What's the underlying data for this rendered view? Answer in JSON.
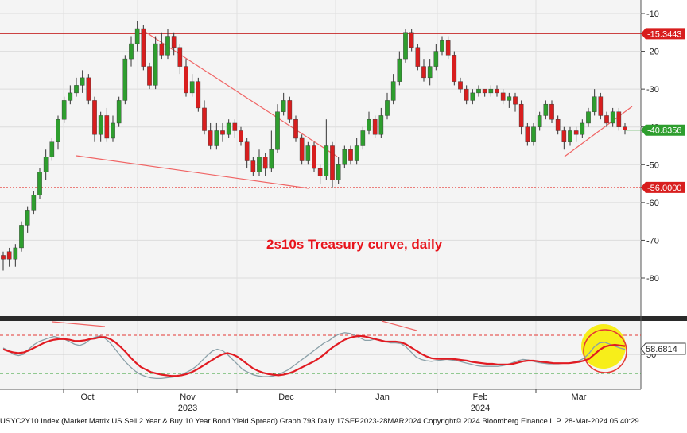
{
  "chart_data": [
    {
      "type": "candlestick",
      "annotation": "2s10s Treasury curve, daily",
      "y_ticks": [
        -10,
        -20,
        -30,
        -40,
        -50,
        -60,
        -70,
        -80
      ],
      "ylim": [
        -88,
        -7
      ],
      "x_month_labels": [
        "Oct",
        "Nov",
        "Dec",
        "Jan",
        "Feb",
        "Mar"
      ],
      "x_year_labels": [
        "2023",
        "2024"
      ],
      "x_range": [
        "2023-09-17",
        "2024-03-28"
      ],
      "price_tags": [
        {
          "value": -15.3443,
          "label": "-15.3443",
          "color": "#d81e1e"
        },
        {
          "value": -40.8356,
          "label": "-40.8356",
          "color": "#2e9e2e"
        },
        {
          "value": -56.0,
          "label": "-56.0000",
          "color": "#d81e1e"
        }
      ],
      "horizontal_lines": [
        {
          "value": -15.3443,
          "style": "solid",
          "color": "#c62828"
        },
        {
          "value": -56.0,
          "style": "dotted",
          "color": "#e53935"
        }
      ],
      "up_color": "#2e9e2e",
      "down_color": "#d81e1e",
      "ohlc": [
        [
          -74,
          -75,
          -78,
          -73
        ],
        [
          -73,
          -75,
          -77,
          -72
        ],
        [
          -75,
          -72,
          -77,
          -71
        ],
        [
          -72,
          -66,
          -73,
          -65
        ],
        [
          -66,
          -62,
          -68,
          -61
        ],
        [
          -62,
          -58,
          -63,
          -57
        ],
        [
          -58,
          -52,
          -59,
          -51
        ],
        [
          -52,
          -48,
          -54,
          -46
        ],
        [
          -48,
          -44,
          -49,
          -43
        ],
        [
          -44,
          -38,
          -46,
          -37
        ],
        [
          -38,
          -33,
          -39,
          -32
        ],
        [
          -33,
          -31,
          -34,
          -29
        ],
        [
          -31,
          -29,
          -32,
          -27
        ],
        [
          -29,
          -27,
          -31,
          -25
        ],
        [
          -27,
          -33,
          -34,
          -26
        ],
        [
          -33,
          -42,
          -44,
          -32
        ],
        [
          -42,
          -37,
          -44,
          -36
        ],
        [
          -37,
          -43,
          -44,
          -35
        ],
        [
          -43,
          -39,
          -44,
          -37
        ],
        [
          -39,
          -33,
          -40,
          -32
        ],
        [
          -33,
          -22,
          -34,
          -21
        ],
        [
          -22,
          -18,
          -24,
          -16
        ],
        [
          -18,
          -14,
          -20,
          -12
        ],
        [
          -14,
          -24,
          -25,
          -13
        ],
        [
          -24,
          -29,
          -30,
          -23
        ],
        [
          -29,
          -18,
          -30,
          -16
        ],
        [
          -18,
          -21,
          -22,
          -15
        ],
        [
          -21,
          -16,
          -22,
          -14
        ],
        [
          -16,
          -19,
          -21,
          -15
        ],
        [
          -19,
          -24,
          -26,
          -18
        ],
        [
          -24,
          -31,
          -32,
          -22
        ],
        [
          -31,
          -28,
          -32,
          -26
        ],
        [
          -28,
          -35,
          -36,
          -27
        ],
        [
          -35,
          -41,
          -42,
          -33
        ],
        [
          -41,
          -45,
          -46,
          -39
        ],
        [
          -45,
          -41,
          -46,
          -39
        ],
        [
          -41,
          -42,
          -44,
          -39
        ],
        [
          -42,
          -39,
          -43,
          -38
        ],
        [
          -39,
          -41,
          -43,
          -38
        ],
        [
          -41,
          -44,
          -45,
          -40
        ],
        [
          -44,
          -49,
          -51,
          -43
        ],
        [
          -49,
          -52,
          -53,
          -48
        ],
        [
          -52,
          -48,
          -53,
          -46
        ],
        [
          -48,
          -51,
          -53,
          -47
        ],
        [
          -51,
          -46,
          -52,
          -41
        ],
        [
          -46,
          -36,
          -47,
          -34
        ],
        [
          -36,
          -33,
          -37,
          -31
        ],
        [
          -33,
          -38,
          -39,
          -32
        ],
        [
          -38,
          -43,
          -44,
          -37
        ],
        [
          -43,
          -49,
          -50,
          -42
        ],
        [
          -49,
          -45,
          -50,
          -44
        ],
        [
          -45,
          -51,
          -52,
          -44
        ],
        [
          -51,
          -53,
          -55,
          -50
        ],
        [
          -53,
          -45,
          -54,
          -38
        ],
        [
          -45,
          -54,
          -56,
          -44
        ],
        [
          -54,
          -50,
          -55,
          -48
        ],
        [
          -50,
          -46,
          -51,
          -45
        ],
        [
          -46,
          -49,
          -50,
          -45
        ],
        [
          -49,
          -45,
          -50,
          -43
        ],
        [
          -45,
          -41,
          -46,
          -40
        ],
        [
          -41,
          -38,
          -42,
          -36
        ],
        [
          -38,
          -42,
          -43,
          -37
        ],
        [
          -42,
          -37,
          -43,
          -35
        ],
        [
          -37,
          -33,
          -38,
          -31
        ],
        [
          -33,
          -28,
          -34,
          -26
        ],
        [
          -28,
          -22,
          -29,
          -20
        ],
        [
          -22,
          -15,
          -23,
          -14
        ],
        [
          -15,
          -19,
          -20,
          -14
        ],
        [
          -19,
          -24,
          -25,
          -18
        ],
        [
          -24,
          -27,
          -28,
          -22
        ],
        [
          -27,
          -24,
          -29,
          -22
        ],
        [
          -24,
          -20,
          -25,
          -18
        ],
        [
          -20,
          -17,
          -21,
          -16
        ],
        [
          -17,
          -21,
          -22,
          -16
        ],
        [
          -21,
          -28,
          -29,
          -20
        ],
        [
          -28,
          -30,
          -31,
          -27
        ],
        [
          -30,
          -33,
          -34,
          -29
        ],
        [
          -33,
          -31,
          -34,
          -30
        ],
        [
          -31,
          -30,
          -32,
          -29
        ],
        [
          -30,
          -31,
          -32,
          -30
        ],
        [
          -31,
          -30,
          -32,
          -29
        ],
        [
          -30,
          -31,
          -32,
          -29
        ],
        [
          -31,
          -33,
          -34,
          -30
        ],
        [
          -33,
          -32,
          -35,
          -31
        ],
        [
          -32,
          -34,
          -36,
          -31
        ],
        [
          -34,
          -40,
          -42,
          -33
        ],
        [
          -40,
          -44,
          -45,
          -39
        ],
        [
          -44,
          -40,
          -45,
          -39
        ],
        [
          -40,
          -37,
          -41,
          -36
        ],
        [
          -37,
          -34,
          -38,
          -33
        ],
        [
          -34,
          -38,
          -39,
          -33
        ],
        [
          -38,
          -41,
          -42,
          -37
        ],
        [
          -41,
          -44,
          -46,
          -40
        ],
        [
          -44,
          -41,
          -45,
          -40
        ],
        [
          -41,
          -42,
          -44,
          -40
        ],
        [
          -42,
          -39,
          -43,
          -38
        ],
        [
          -39,
          -36,
          -40,
          -35
        ],
        [
          -36,
          -32,
          -37,
          -30
        ],
        [
          -32,
          -37,
          -38,
          -31
        ],
        [
          -37,
          -39,
          -40,
          -36
        ],
        [
          -39,
          -36,
          -40,
          -35
        ],
        [
          -36,
          -40,
          -41,
          -35
        ],
        [
          -40,
          -40.8,
          -42,
          -39
        ]
      ]
    },
    {
      "type": "line",
      "panel": "oscillator",
      "y_tick_label": "50",
      "tag": {
        "label": "58.6814",
        "value": 58.68
      },
      "ylim": [
        0,
        100
      ],
      "levels": [
        {
          "value": 80,
          "color": "#e53935"
        },
        {
          "value": 20,
          "color": "#2e9e2e"
        }
      ],
      "series": [
        {
          "color": "#e11b22",
          "values": [
            58,
            55,
            53,
            52,
            53,
            56,
            60,
            64,
            68,
            71,
            73,
            74,
            74,
            73,
            71,
            71,
            72,
            74,
            75,
            77,
            77,
            74,
            69,
            62,
            54,
            45,
            37,
            30,
            26,
            22,
            20,
            18,
            17,
            16,
            16,
            17,
            19,
            22,
            26,
            31,
            36,
            41,
            46,
            50,
            52,
            50,
            46,
            40,
            34,
            28,
            24,
            21,
            19,
            18,
            17,
            18,
            20,
            23,
            27,
            31,
            35,
            39,
            44,
            50,
            57,
            63,
            68,
            73,
            76,
            78,
            79,
            78,
            76,
            74,
            72,
            70,
            70,
            70,
            69,
            66,
            61,
            56,
            51,
            47,
            44,
            43,
            43,
            43,
            43,
            42,
            41,
            40,
            38,
            37,
            36,
            35,
            35,
            34,
            34,
            34,
            35,
            37,
            39,
            40,
            40,
            39,
            38,
            37,
            36,
            36,
            36,
            36,
            37,
            38,
            40,
            43,
            50,
            57,
            62,
            64,
            65,
            64,
            63
          ]
        },
        {
          "color": "#8aa0a8",
          "values": [
            60,
            56,
            50,
            48,
            50,
            58,
            65,
            70,
            73,
            76,
            78,
            76,
            74,
            70,
            66,
            64,
            67,
            73,
            77,
            79,
            75,
            68,
            58,
            48,
            38,
            30,
            23,
            18,
            15,
            13,
            12,
            12,
            13,
            14,
            15,
            18,
            22,
            26,
            32,
            40,
            48,
            55,
            58,
            56,
            50,
            42,
            34,
            26,
            22,
            18,
            16,
            15,
            15,
            16,
            18,
            22,
            26,
            32,
            38,
            44,
            50,
            56,
            62,
            68,
            72,
            78,
            82,
            84,
            83,
            80,
            76,
            72,
            72,
            74,
            73,
            70,
            68,
            68,
            67,
            62,
            54,
            46,
            42,
            40,
            39,
            40,
            41,
            42,
            41,
            40,
            38,
            36,
            34,
            32,
            31,
            31,
            31,
            31,
            32,
            34,
            37,
            40,
            42,
            41,
            39,
            37,
            36,
            35,
            35,
            35,
            36,
            36,
            38,
            40,
            44,
            52,
            62,
            68,
            69,
            66,
            63,
            60,
            58
          ]
        }
      ]
    }
  ],
  "footer": {
    "text": "USYC2Y10 Index (Market Matrix US Sell 2 Year & Buy 10 Year Bond Yield Spread) Graph 793  Daily 17SEP2023-28MAR2024  Copyright© 2024 Bloomberg Finance L.P.   28-Mar-2024 05:40:29"
  }
}
